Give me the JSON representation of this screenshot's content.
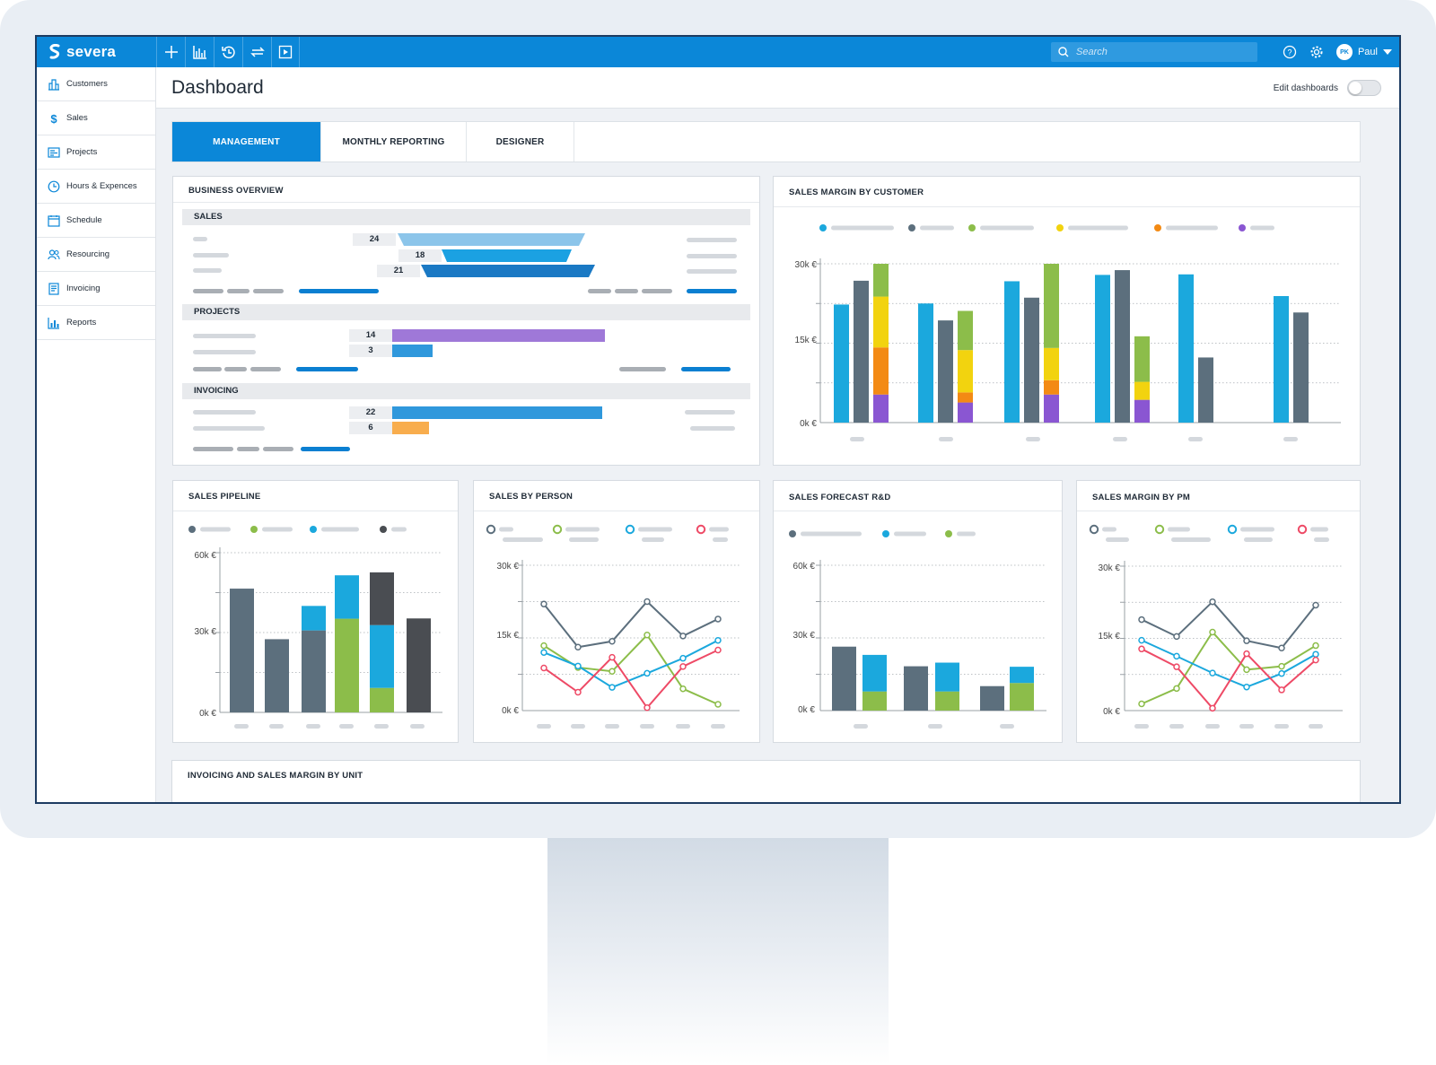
{
  "app": {
    "logo_text": "severa",
    "search_placeholder": "Search",
    "user_initials": "PK",
    "user_name": "Paul",
    "toolbar_icons": [
      "plus-icon",
      "chart-icon",
      "history-icon",
      "swap-icon",
      "play-icon"
    ]
  },
  "sidebar": {
    "items": [
      {
        "label": "Customers",
        "icon": "building-icon"
      },
      {
        "label": "Sales",
        "icon": "dollar-icon"
      },
      {
        "label": "Projects",
        "icon": "projects-icon"
      },
      {
        "label": "Hours & Expences",
        "icon": "clock-icon"
      },
      {
        "label": "Schedule",
        "icon": "calendar-icon"
      },
      {
        "label": "Resourcing",
        "icon": "people-icon"
      },
      {
        "label": "Invoicing",
        "icon": "invoice-icon"
      },
      {
        "label": "Reports",
        "icon": "report-icon"
      }
    ]
  },
  "header": {
    "title": "Dashboard",
    "edit_label": "Edit dashboards",
    "edit_enabled": false
  },
  "tabs": [
    {
      "label": "MANAGEMENT",
      "active": true
    },
    {
      "label": "MONTHLY REPORTING",
      "active": false
    },
    {
      "label": "DESIGNER",
      "active": false
    }
  ],
  "colors": {
    "accent": "#0b87d8",
    "cyan": "#1ba8dd",
    "slate": "#5c6f7d",
    "green": "#8cbd4a",
    "yellow": "#f2d30f",
    "orange": "#f38a14",
    "purple": "#8a56d2",
    "dark": "#4a4d52",
    "red": "#ee4a66",
    "orange_light": "#f8ad4d"
  },
  "business_overview": {
    "title": "BUSINESS OVERVIEW",
    "sections": [
      {
        "label": "SALES",
        "funnel_values": [
          24,
          18,
          21
        ]
      },
      {
        "label": "PROJECTS",
        "values": [
          14,
          3
        ]
      },
      {
        "label": "INVOICING",
        "values": [
          22,
          6
        ]
      }
    ]
  },
  "chart_data": [
    {
      "id": "sales_margin_by_customer",
      "title": "SALES MARGIN BY CUSTOMER",
      "type": "bar",
      "ylim": [
        0,
        30000
      ],
      "ytick_labels": [
        "30k €",
        "15k €",
        "0k €"
      ],
      "groups": [
        {
          "bars": [
            {
              "color": "cyan",
              "value": 22300
            },
            {
              "color": "slate",
              "value": 26800
            },
            {
              "stack": [
                {
                  "color": "purple",
                  "value": 5300
                },
                {
                  "color": "orange",
                  "value": 8900
                },
                {
                  "color": "yellow",
                  "value": 9600
                },
                {
                  "color": "green",
                  "value": 6200
                }
              ]
            }
          ]
        },
        {
          "bars": [
            {
              "color": "cyan",
              "value": 22500
            },
            {
              "color": "slate",
              "value": 19300
            },
            {
              "stack": [
                {
                  "color": "purple",
                  "value": 3800
                },
                {
                  "color": "orange",
                  "value": 1900
                },
                {
                  "color": "yellow",
                  "value": 8000
                },
                {
                  "color": "green",
                  "value": 7400
                }
              ]
            }
          ]
        },
        {
          "bars": [
            {
              "color": "cyan",
              "value": 26700
            },
            {
              "color": "slate",
              "value": 23600
            },
            {
              "stack": [
                {
                  "color": "purple",
                  "value": 5300
                },
                {
                  "color": "orange",
                  "value": 2700
                },
                {
                  "color": "yellow",
                  "value": 6100
                },
                {
                  "color": "green",
                  "value": 15900
                }
              ]
            }
          ]
        },
        {
          "bars": [
            {
              "color": "cyan",
              "value": 27900
            },
            {
              "color": "slate",
              "value": 28800
            },
            {
              "stack": [
                {
                  "color": "purple",
                  "value": 4300
                },
                {
                  "color": "yellow",
                  "value": 3400
                },
                {
                  "color": "green",
                  "value": 8600
                }
              ]
            }
          ]
        },
        {
          "bars": [
            {
              "color": "cyan",
              "value": 28000
            },
            {
              "color": "slate",
              "value": 12300
            }
          ]
        },
        {
          "bars": [
            {
              "color": "cyan",
              "value": 23900
            },
            {
              "color": "slate",
              "value": 20800
            }
          ]
        }
      ]
    },
    {
      "id": "sales_pipeline",
      "title": "SALES PIPELINE",
      "type": "bar",
      "ylim": [
        0,
        60000
      ],
      "ytick_labels": [
        "60k €",
        "30k €",
        "0k €"
      ],
      "columns": [
        [
          {
            "color": "slate",
            "value": 46500
          }
        ],
        [
          {
            "color": "slate",
            "value": 27500
          }
        ],
        [
          {
            "color": "slate",
            "value": 30800
          },
          {
            "color": "cyan",
            "value": 9200
          }
        ],
        [
          {
            "color": "green",
            "value": 35200
          },
          {
            "color": "cyan",
            "value": 16300
          }
        ],
        [
          {
            "color": "green",
            "value": 9200
          },
          {
            "color": "cyan",
            "value": 23600
          },
          {
            "color": "dark",
            "value": 19800
          }
        ],
        [
          {
            "color": "dark",
            "value": 35300
          }
        ]
      ]
    },
    {
      "id": "sales_by_person",
      "title": "SALES BY PERSON",
      "type": "line",
      "ylim": [
        0,
        30000
      ],
      "ytick_labels": [
        "30k €",
        "15k €",
        "0k €"
      ],
      "series": [
        {
          "color": "slate",
          "values": [
            22000,
            13100,
            14300,
            22500,
            15400,
            18900
          ]
        },
        {
          "color": "green",
          "values": [
            13400,
            8900,
            8100,
            15600,
            4500,
            1300
          ]
        },
        {
          "color": "cyan",
          "values": [
            12000,
            9200,
            4800,
            7700,
            10800,
            14500
          ]
        },
        {
          "color": "red",
          "values": [
            8800,
            3800,
            11000,
            600,
            9100,
            12500
          ]
        }
      ]
    },
    {
      "id": "sales_forecast_rd",
      "title": "SALES FORECAST R&D",
      "type": "bar",
      "ylim": [
        0,
        60000
      ],
      "ytick_labels": [
        "60k €",
        "30k €",
        "0k €"
      ],
      "columns": [
        [
          {
            "color": "slate",
            "value": 26400
          }
        ],
        [
          {
            "color": "green",
            "value": 7900
          },
          {
            "color": "cyan",
            "value": 15100
          }
        ],
        [
          {
            "color": "slate",
            "value": 18300
          }
        ],
        [
          {
            "color": "green",
            "value": 7900
          },
          {
            "color": "cyan",
            "value": 11900
          }
        ],
        [
          {
            "color": "slate",
            "value": 10100
          }
        ],
        [
          {
            "color": "green",
            "value": 11400
          },
          {
            "color": "cyan",
            "value": 6700
          }
        ]
      ]
    },
    {
      "id": "sales_margin_by_pm",
      "title": "SALES MARGIN BY PM",
      "type": "line",
      "ylim": [
        0,
        30000
      ],
      "ytick_labels": [
        "30k €",
        "15k €",
        "0k €"
      ],
      "series": [
        {
          "color": "slate",
          "values": [
            18900,
            15400,
            22600,
            14500,
            13000,
            21900
          ]
        },
        {
          "color": "green",
          "values": [
            1400,
            4600,
            16300,
            8500,
            9200,
            13500
          ]
        },
        {
          "color": "cyan",
          "values": [
            14600,
            11300,
            7800,
            4900,
            7700,
            11700
          ]
        },
        {
          "color": "red",
          "values": [
            12800,
            9100,
            500,
            11800,
            4300,
            10500
          ]
        }
      ]
    }
  ],
  "bottom_panel": {
    "title": "INVOICING AND SALES MARGIN BY UNIT"
  }
}
